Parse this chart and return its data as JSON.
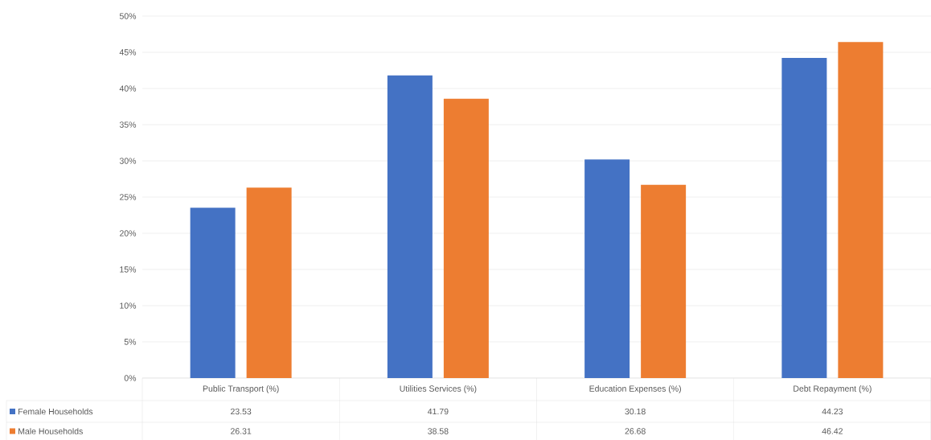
{
  "chart_data": {
    "type": "bar",
    "categories": [
      "Public Transport (%)",
      "Utilities Services (%)",
      "Education Expenses (%)",
      "Debt Repayment (%)"
    ],
    "series": [
      {
        "name": "Female Households",
        "color": "#4472c4",
        "values": [
          23.53,
          41.79,
          30.18,
          44.23
        ]
      },
      {
        "name": "Male Households",
        "color": "#ed7d31",
        "values": [
          26.31,
          38.58,
          26.68,
          46.42
        ]
      }
    ],
    "ylim": [
      0,
      50
    ],
    "yticks": [
      {
        "value": 0,
        "label": "0%"
      },
      {
        "value": 5,
        "label": "5%"
      },
      {
        "value": 10,
        "label": "10%"
      },
      {
        "value": 15,
        "label": "15%"
      },
      {
        "value": 20,
        "label": "20%"
      },
      {
        "value": 25,
        "label": "25%"
      },
      {
        "value": 30,
        "label": "30%"
      },
      {
        "value": 35,
        "label": "35%"
      },
      {
        "value": 40,
        "label": "40%"
      },
      {
        "value": 45,
        "label": "45%"
      },
      {
        "value": 50,
        "label": "50%"
      }
    ],
    "grid": "y",
    "legend": "bottom",
    "data_labels": true
  }
}
